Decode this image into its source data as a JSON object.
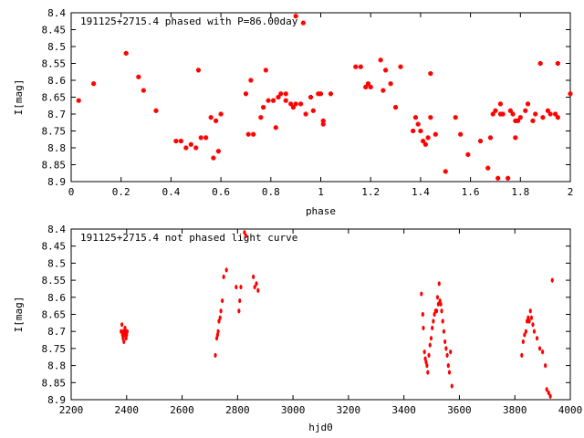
{
  "chart_data": [
    {
      "type": "scatter",
      "title": "191125+2715.4 phased with P=86.00day",
      "xlabel": "phase",
      "ylabel": "I[mag]",
      "xlim": [
        0,
        2
      ],
      "ylim": [
        8.9,
        8.4
      ],
      "y_inverted": true,
      "grid": false,
      "marker_color": "#ff0000",
      "x_ticks": [
        "0",
        "0.2",
        "0.4",
        "0.6",
        "0.8",
        "1",
        "1.2",
        "1.4",
        "1.6",
        "1.8",
        "2"
      ],
      "y_ticks": [
        "8.4",
        "8.45",
        "8.5",
        "8.55",
        "8.6",
        "8.65",
        "8.7",
        "8.75",
        "8.8",
        "8.85",
        "8.9"
      ],
      "points": [
        [
          0.03,
          8.66
        ],
        [
          0.09,
          8.61
        ],
        [
          0.22,
          8.52
        ],
        [
          0.27,
          8.59
        ],
        [
          0.29,
          8.63
        ],
        [
          0.34,
          8.69
        ],
        [
          0.42,
          8.78
        ],
        [
          0.44,
          8.78
        ],
        [
          0.46,
          8.8
        ],
        [
          0.48,
          8.79
        ],
        [
          0.5,
          8.8
        ],
        [
          0.51,
          8.57
        ],
        [
          0.52,
          8.77
        ],
        [
          0.54,
          8.77
        ],
        [
          0.56,
          8.71
        ],
        [
          0.57,
          8.83
        ],
        [
          0.58,
          8.72
        ],
        [
          0.59,
          8.81
        ],
        [
          0.6,
          8.7
        ],
        [
          0.7,
          8.64
        ],
        [
          0.71,
          8.76
        ],
        [
          0.72,
          8.6
        ],
        [
          0.73,
          8.76
        ],
        [
          0.76,
          8.71
        ],
        [
          0.77,
          8.68
        ],
        [
          0.78,
          8.57
        ],
        [
          0.79,
          8.66
        ],
        [
          0.81,
          8.66
        ],
        [
          0.82,
          8.74
        ],
        [
          0.83,
          8.65
        ],
        [
          0.84,
          8.64
        ],
        [
          0.86,
          8.64
        ],
        [
          0.86,
          8.66
        ],
        [
          0.88,
          8.67
        ],
        [
          0.89,
          8.68
        ],
        [
          0.9,
          8.41
        ],
        [
          0.9,
          8.67
        ],
        [
          0.92,
          8.67
        ],
        [
          0.93,
          8.43
        ],
        [
          0.94,
          8.7
        ],
        [
          0.96,
          8.65
        ],
        [
          0.97,
          8.69
        ],
        [
          0.99,
          8.64
        ],
        [
          1.0,
          8.64
        ],
        [
          1.01,
          8.72
        ],
        [
          1.01,
          8.73
        ],
        [
          1.04,
          8.64
        ],
        [
          1.14,
          8.56
        ],
        [
          1.16,
          8.56
        ],
        [
          1.18,
          8.62
        ],
        [
          1.19,
          8.61
        ],
        [
          1.2,
          8.62
        ],
        [
          1.24,
          8.54
        ],
        [
          1.25,
          8.63
        ],
        [
          1.26,
          8.57
        ],
        [
          1.28,
          8.61
        ],
        [
          1.3,
          8.68
        ],
        [
          1.32,
          8.56
        ],
        [
          1.37,
          8.75
        ],
        [
          1.38,
          8.71
        ],
        [
          1.39,
          8.73
        ],
        [
          1.4,
          8.75
        ],
        [
          1.41,
          8.78
        ],
        [
          1.42,
          8.79
        ],
        [
          1.43,
          8.77
        ],
        [
          1.44,
          8.58
        ],
        [
          1.44,
          8.71
        ],
        [
          1.46,
          8.76
        ],
        [
          1.5,
          8.87
        ],
        [
          1.54,
          8.71
        ],
        [
          1.56,
          8.76
        ],
        [
          1.59,
          8.82
        ],
        [
          1.64,
          8.78
        ],
        [
          1.67,
          8.86
        ],
        [
          1.68,
          8.77
        ],
        [
          1.69,
          8.7
        ],
        [
          1.7,
          8.69
        ],
        [
          1.71,
          8.89
        ],
        [
          1.72,
          8.7
        ],
        [
          1.72,
          8.67
        ],
        [
          1.73,
          8.7
        ],
        [
          1.75,
          8.89
        ],
        [
          1.76,
          8.69
        ],
        [
          1.77,
          8.7
        ],
        [
          1.78,
          8.72
        ],
        [
          1.78,
          8.77
        ],
        [
          1.79,
          8.72
        ],
        [
          1.8,
          8.71
        ],
        [
          1.82,
          8.69
        ],
        [
          1.83,
          8.67
        ],
        [
          1.85,
          8.72
        ],
        [
          1.86,
          8.7
        ],
        [
          1.88,
          8.55
        ],
        [
          1.89,
          8.71
        ],
        [
          1.91,
          8.69
        ],
        [
          1.92,
          8.7
        ],
        [
          1.94,
          8.7
        ],
        [
          1.95,
          8.55
        ],
        [
          1.95,
          8.71
        ],
        [
          2.0,
          8.64
        ]
      ]
    },
    {
      "type": "scatter",
      "title": "191125+2715.4 not phased light curve",
      "xlabel": "hjd0",
      "ylabel": "I[mag]",
      "xlim": [
        2200,
        4000
      ],
      "ylim": [
        8.9,
        8.4
      ],
      "y_inverted": true,
      "grid": false,
      "marker_color": "#ff0000",
      "x_ticks": [
        "2200",
        "2400",
        "2600",
        "2800",
        "3000",
        "3200",
        "3400",
        "3600",
        "3800",
        "4000"
      ],
      "y_ticks": [
        "8.4",
        "8.45",
        "8.5",
        "8.55",
        "8.6",
        "8.65",
        "8.7",
        "8.75",
        "8.8",
        "8.85",
        "8.9"
      ],
      "points": [
        [
          2380,
          8.7
        ],
        [
          2383,
          8.68
        ],
        [
          2385,
          8.71
        ],
        [
          2387,
          8.72
        ],
        [
          2388,
          8.7
        ],
        [
          2390,
          8.73
        ],
        [
          2392,
          8.71
        ],
        [
          2394,
          8.69
        ],
        [
          2396,
          8.7
        ],
        [
          2398,
          8.72
        ],
        [
          2400,
          8.71
        ],
        [
          2402,
          8.7
        ],
        [
          2720,
          8.77
        ],
        [
          2725,
          8.72
        ],
        [
          2728,
          8.71
        ],
        [
          2730,
          8.7
        ],
        [
          2733,
          8.67
        ],
        [
          2737,
          8.66
        ],
        [
          2740,
          8.64
        ],
        [
          2745,
          8.61
        ],
        [
          2750,
          8.54
        ],
        [
          2760,
          8.52
        ],
        [
          2795,
          8.57
        ],
        [
          2805,
          8.64
        ],
        [
          2808,
          8.61
        ],
        [
          2812,
          8.57
        ],
        [
          2825,
          8.41
        ],
        [
          2830,
          8.42
        ],
        [
          2857,
          8.54
        ],
        [
          2862,
          8.57
        ],
        [
          2868,
          8.56
        ],
        [
          2874,
          8.58
        ],
        [
          3463,
          8.59
        ],
        [
          3468,
          8.65
        ],
        [
          3470,
          8.69
        ],
        [
          3474,
          8.76
        ],
        [
          3477,
          8.78
        ],
        [
          3480,
          8.79
        ],
        [
          3483,
          8.8
        ],
        [
          3486,
          8.82
        ],
        [
          3490,
          8.77
        ],
        [
          3494,
          8.74
        ],
        [
          3498,
          8.72
        ],
        [
          3502,
          8.69
        ],
        [
          3506,
          8.67
        ],
        [
          3510,
          8.65
        ],
        [
          3514,
          8.64
        ],
        [
          3518,
          8.64
        ],
        [
          3521,
          8.6
        ],
        [
          3524,
          8.62
        ],
        [
          3527,
          8.56
        ],
        [
          3530,
          8.61
        ],
        [
          3533,
          8.62
        ],
        [
          3536,
          8.64
        ],
        [
          3540,
          8.67
        ],
        [
          3544,
          8.7
        ],
        [
          3548,
          8.73
        ],
        [
          3552,
          8.75
        ],
        [
          3556,
          8.77
        ],
        [
          3560,
          8.8
        ],
        [
          3564,
          8.82
        ],
        [
          3568,
          8.76
        ],
        [
          3573,
          8.86
        ],
        [
          3825,
          8.77
        ],
        [
          3830,
          8.73
        ],
        [
          3835,
          8.71
        ],
        [
          3840,
          8.7
        ],
        [
          3844,
          8.67
        ],
        [
          3848,
          8.66
        ],
        [
          3852,
          8.67
        ],
        [
          3856,
          8.64
        ],
        [
          3860,
          8.66
        ],
        [
          3865,
          8.68
        ],
        [
          3870,
          8.7
        ],
        [
          3880,
          8.72
        ],
        [
          3890,
          8.75
        ],
        [
          3900,
          8.76
        ],
        [
          3910,
          8.8
        ],
        [
          3915,
          8.87
        ],
        [
          3922,
          8.88
        ],
        [
          3928,
          8.89
        ],
        [
          3935,
          8.55
        ]
      ]
    }
  ]
}
